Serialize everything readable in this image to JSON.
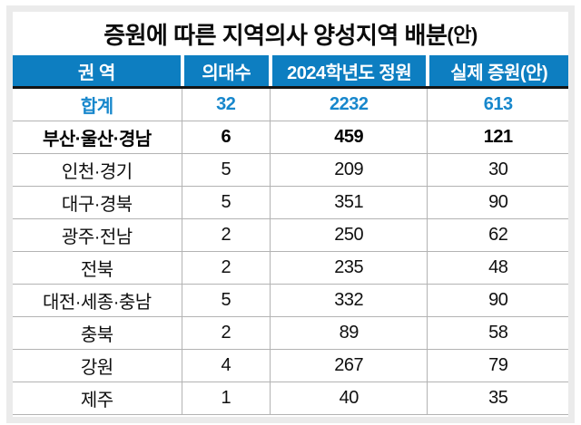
{
  "infographic": {
    "title": "증원에 따른 지역의사 양성지역 배분",
    "title_suffix": "(안)"
  },
  "colors": {
    "header_bg": "#0d7ec1",
    "total_text": "#1787cc",
    "separator": "#b3b3b3",
    "header_underline": "#141414",
    "card_bg": "#ebebeb"
  },
  "table": {
    "columns": [
      "권 역",
      "의대수",
      "2024학년도 정원",
      "실제 증원(안)"
    ],
    "rows": [
      {
        "region": "합계",
        "schools": "32",
        "quota": "2232",
        "increase": "613",
        "style": "total"
      },
      {
        "region": "부산·울산·경남",
        "schools": "6",
        "quota": "459",
        "increase": "121",
        "style": "bold"
      },
      {
        "region": "인천·경기",
        "schools": "5",
        "quota": "209",
        "increase": "30",
        "style": "normal"
      },
      {
        "region": "대구·경북",
        "schools": "5",
        "quota": "351",
        "increase": "90",
        "style": "normal"
      },
      {
        "region": "광주·전남",
        "schools": "2",
        "quota": "250",
        "increase": "62",
        "style": "normal"
      },
      {
        "region": "전북",
        "schools": "2",
        "quota": "235",
        "increase": "48",
        "style": "normal"
      },
      {
        "region": "대전·세종·충남",
        "schools": "5",
        "quota": "332",
        "increase": "90",
        "style": "normal"
      },
      {
        "region": "충북",
        "schools": "2",
        "quota": "89",
        "increase": "58",
        "style": "normal"
      },
      {
        "region": "강원",
        "schools": "4",
        "quota": "267",
        "increase": "79",
        "style": "normal"
      },
      {
        "region": "제주",
        "schools": "1",
        "quota": "40",
        "increase": "35",
        "style": "normal"
      }
    ]
  }
}
